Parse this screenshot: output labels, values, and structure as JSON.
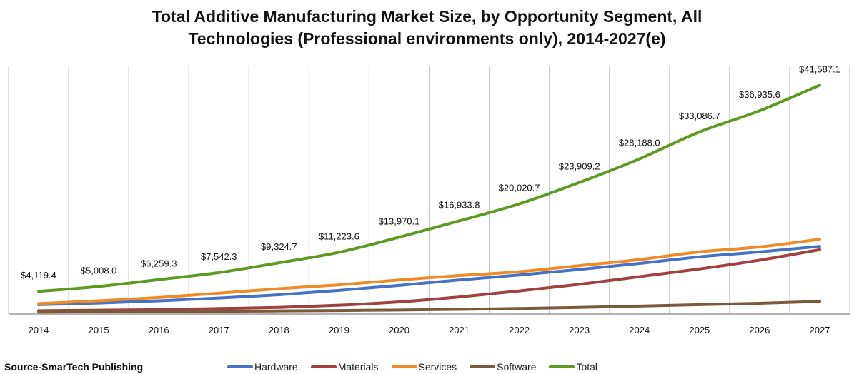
{
  "chart_data": {
    "type": "line",
    "title_line1": "Total Additive Manufacturing Market Size, by Opportunity Segment, All",
    "title_line2": "Technologies (Professional environments only), 2014-2027(e)",
    "categories": [
      "2014",
      "2015",
      "2016",
      "2017",
      "2018",
      "2019",
      "2020",
      "2021",
      "2022",
      "2023",
      "2024",
      "2025",
      "2026",
      "2027"
    ],
    "ylim": [
      0,
      45000
    ],
    "grid": "vertical",
    "legend_placement": "bottom",
    "series": [
      {
        "name": "Hardware",
        "color": "#4472C4",
        "values": [
          1700,
          2000,
          2400,
          2900,
          3500,
          4300,
          5200,
          6200,
          7100,
          8100,
          9200,
          10400,
          11300,
          12300
        ]
      },
      {
        "name": "Materials",
        "color": "#A0403F",
        "values": [
          600,
          700,
          800,
          1000,
          1200,
          1600,
          2200,
          3100,
          4200,
          5400,
          6800,
          8200,
          9800,
          11700
        ]
      },
      {
        "name": "Services",
        "color": "#F08A24",
        "values": [
          1900,
          2400,
          3000,
          3800,
          4600,
          5300,
          6200,
          7000,
          7700,
          8800,
          9900,
          11300,
          12200,
          13600
        ]
      },
      {
        "name": "Software",
        "color": "#7B5A3C",
        "values": [
          350,
          400,
          450,
          500,
          560,
          640,
          730,
          850,
          1000,
          1200,
          1450,
          1700,
          1950,
          2300
        ]
      },
      {
        "name": "Total",
        "color": "#5B9B21",
        "values": [
          4119.4,
          5008.0,
          6259.3,
          7542.3,
          9324.7,
          11223.6,
          13970.1,
          16933.8,
          20020.7,
          23909.2,
          28188.0,
          33086.7,
          36935.6,
          41587.1
        ],
        "labels": [
          "$4,119.4",
          "$5,008.0",
          "$6,259.3",
          "$7,542.3",
          "$9,324.7",
          "$11,223.6",
          "$13,970.1",
          "$16,933.8",
          "$20,020.7",
          "$23,909.2",
          "$28,188.0",
          "$33,086.7",
          "$36,935.6",
          "$41,587.1"
        ]
      }
    ]
  },
  "source": "Source-SmarTech Publishing"
}
